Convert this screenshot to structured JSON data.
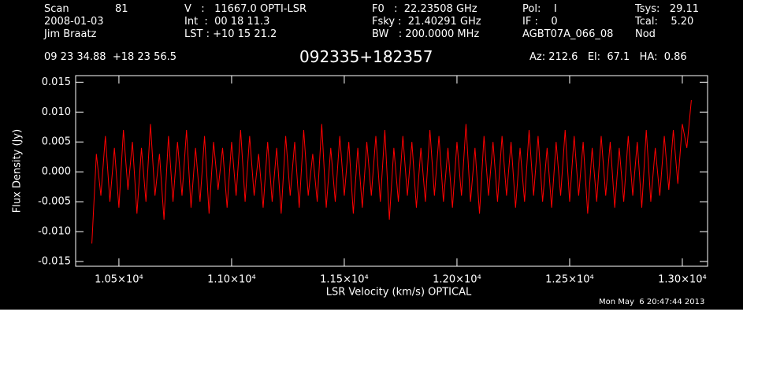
{
  "header": {
    "scan_label": "Scan",
    "scan": "81",
    "date": "2008-01-03",
    "observer": "Jim Braatz",
    "v": "V   :   11667.0 OPTI-LSR",
    "int": "Int  :  00 18 11.3",
    "lst": "LST : +10 15 21.2",
    "f0": "F0   :  22.23508 GHz",
    "fsky": "Fsky :  21.40291 GHz",
    "bw": "BW   : 200.0000 MHz",
    "pol": "Pol:    I",
    "if": "IF :    0",
    "project": "AGBT07A_066_08",
    "tsys": "Tsys:   29.11",
    "tcal": "Tcal:    5.20",
    "proc": "Nod",
    "coords": "09 23 34.88  +18 23 56.5",
    "azel": "Az: 212.6   El:  67.1   HA:  0.86",
    "timestamp": "Mon May  6 20:47:44 2013"
  },
  "chart_data": {
    "type": "line",
    "title": "092335+182357",
    "x_label": "LSR Velocity (km/s) OPTICAL",
    "y_label": "Flux Density (Jy)",
    "xlim": [
      10308,
      13112
    ],
    "ylim": [
      -0.0158,
      0.0161
    ],
    "xticks": [
      {
        "value": 10500,
        "label": "1.05×10⁴"
      },
      {
        "value": 11000,
        "label": "1.10×10⁴"
      },
      {
        "value": 11500,
        "label": "1.15×10⁴"
      },
      {
        "value": 12000,
        "label": "1.20×10⁴"
      },
      {
        "value": 12500,
        "label": "1.25×10⁴"
      },
      {
        "value": 13000,
        "label": "1.30×10⁴"
      }
    ],
    "yticks": [
      {
        "value": -0.015,
        "label": "-0.015"
      },
      {
        "value": -0.01,
        "label": "-0.010"
      },
      {
        "value": -0.005,
        "label": "-0.005"
      },
      {
        "value": 0,
        "label": "0.000"
      },
      {
        "value": 0.005,
        "label": "0.005"
      },
      {
        "value": 0.01,
        "label": "0.010"
      },
      {
        "value": 0.015,
        "label": "0.015"
      }
    ],
    "grid": false,
    "x": [
      10380,
      10400,
      10420,
      10440,
      10460,
      10480,
      10500,
      10520,
      10540,
      10560,
      10580,
      10600,
      10620,
      10640,
      10660,
      10680,
      10700,
      10720,
      10740,
      10760,
      10780,
      10800,
      10820,
      10840,
      10860,
      10880,
      10900,
      10920,
      10940,
      10960,
      10980,
      11000,
      11020,
      11040,
      11060,
      11080,
      11100,
      11120,
      11140,
      11160,
      11180,
      11200,
      11220,
      11240,
      11260,
      11280,
      11300,
      11320,
      11340,
      11360,
      11380,
      11400,
      11420,
      11440,
      11460,
      11480,
      11500,
      11520,
      11540,
      11560,
      11580,
      11600,
      11620,
      11640,
      11660,
      11680,
      11700,
      11720,
      11740,
      11760,
      11780,
      11800,
      11820,
      11840,
      11860,
      11880,
      11900,
      11920,
      11940,
      11960,
      11980,
      12000,
      12020,
      12040,
      12060,
      12080,
      12100,
      12120,
      12140,
      12160,
      12180,
      12200,
      12220,
      12240,
      12260,
      12280,
      12300,
      12320,
      12340,
      12360,
      12380,
      12400,
      12420,
      12440,
      12460,
      12480,
      12500,
      12520,
      12540,
      12560,
      12580,
      12600,
      12620,
      12640,
      12660,
      12680,
      12700,
      12720,
      12740,
      12760,
      12780,
      12800,
      12820,
      12840,
      12860,
      12880,
      12900,
      12920,
      12940,
      12960,
      12980,
      13000,
      13020,
      13040
    ],
    "series": [
      {
        "color": "#ff0000",
        "values": [
          -0.012,
          0.003,
          -0.004,
          0.006,
          -0.005,
          0.004,
          -0.006,
          0.007,
          -0.003,
          0.005,
          -0.007,
          0.004,
          -0.005,
          0.008,
          -0.004,
          0.003,
          -0.008,
          0.006,
          -0.005,
          0.005,
          -0.004,
          0.007,
          -0.006,
          0.004,
          -0.005,
          0.006,
          -0.007,
          0.005,
          -0.003,
          0.004,
          -0.006,
          0.005,
          -0.004,
          0.007,
          -0.005,
          0.006,
          -0.004,
          0.003,
          -0.006,
          0.005,
          -0.005,
          0.004,
          -0.007,
          0.006,
          -0.004,
          0.005,
          -0.006,
          0.007,
          -0.004,
          0.003,
          -0.005,
          0.008,
          -0.006,
          0.004,
          -0.005,
          0.006,
          -0.004,
          0.005,
          -0.007,
          0.004,
          -0.006,
          0.005,
          -0.004,
          0.006,
          -0.005,
          0.007,
          -0.008,
          0.004,
          -0.005,
          0.006,
          -0.004,
          0.005,
          -0.006,
          0.004,
          -0.005,
          0.007,
          -0.004,
          0.006,
          -0.005,
          0.004,
          -0.006,
          0.005,
          -0.004,
          0.008,
          -0.005,
          0.004,
          -0.007,
          0.006,
          -0.004,
          0.005,
          -0.005,
          0.006,
          -0.004,
          0.005,
          -0.006,
          0.004,
          -0.005,
          0.007,
          -0.004,
          0.006,
          -0.005,
          0.004,
          -0.006,
          0.005,
          -0.004,
          0.007,
          -0.005,
          0.006,
          -0.004,
          0.005,
          -0.007,
          0.004,
          -0.005,
          0.006,
          -0.004,
          0.005,
          -0.006,
          0.004,
          -0.005,
          0.006,
          -0.004,
          0.005,
          -0.006,
          0.007,
          -0.005,
          0.004,
          -0.004,
          0.006,
          -0.003,
          0.007,
          -0.002,
          0.008,
          0.004,
          0.012
        ]
      }
    ]
  }
}
